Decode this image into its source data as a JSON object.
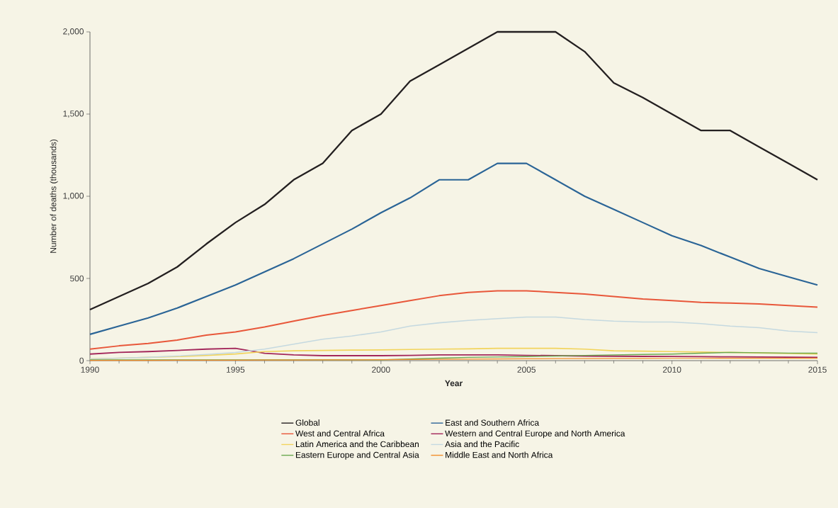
{
  "chart_data": {
    "type": "line",
    "xlabel": "Year",
    "ylabel": "Number of deaths (thousands)",
    "x": [
      1990,
      1991,
      1992,
      1993,
      1994,
      1995,
      1996,
      1997,
      1998,
      1999,
      2000,
      2001,
      2002,
      2003,
      2004,
      2005,
      2006,
      2007,
      2008,
      2009,
      2010,
      2011,
      2012,
      2013,
      2014,
      2015
    ],
    "xlim": [
      1990,
      2015
    ],
    "xticks": [
      1990,
      1995,
      2000,
      2005,
      2010,
      2015
    ],
    "ylim": [
      0,
      2000
    ],
    "yticks": [
      0,
      500,
      {
        "value": 1000,
        "label": "1,000"
      },
      {
        "value": 1500,
        "label": "1,500"
      },
      {
        "value": 2000,
        "label": "2,000"
      }
    ],
    "legend": "bottom",
    "marker": "none",
    "line_style": "solid",
    "series": [
      {
        "name": "Global",
        "color": "#231f20",
        "values": [
          310,
          390,
          470,
          570,
          710,
          840,
          950,
          1100,
          1200,
          1400,
          1500,
          1700,
          1800,
          1900,
          2000,
          2000,
          2000,
          1880,
          1690,
          1600,
          1500,
          1400,
          1400,
          1300,
          1200,
          1100
        ]
      },
      {
        "name": "East and Southern Africa",
        "color": "#2a6496",
        "values": [
          160,
          210,
          260,
          320,
          390,
          460,
          540,
          620,
          710,
          800,
          900,
          990,
          1100,
          1100,
          1200,
          1200,
          1100,
          1000,
          920,
          840,
          760,
          700,
          630,
          560,
          510,
          460
        ]
      },
      {
        "name": "West and Central Africa",
        "color": "#e8573a",
        "values": [
          70,
          90,
          105,
          125,
          155,
          175,
          205,
          240,
          275,
          305,
          335,
          365,
          395,
          415,
          425,
          425,
          415,
          405,
          390,
          375,
          365,
          355,
          350,
          345,
          335,
          325
        ]
      },
      {
        "name": "Western and Central Europe and North America",
        "color": "#a3275a",
        "values": [
          40,
          50,
          55,
          62,
          70,
          75,
          45,
          35,
          30,
          30,
          30,
          32,
          35,
          35,
          35,
          32,
          30,
          28,
          27,
          26,
          25,
          24,
          23,
          22,
          21,
          20
        ]
      },
      {
        "name": "Latin America and the Caribbean",
        "color": "#f2d45c",
        "values": [
          10,
          15,
          20,
          25,
          32,
          40,
          55,
          60,
          62,
          64,
          65,
          68,
          70,
          72,
          75,
          75,
          75,
          70,
          60,
          58,
          55,
          52,
          50,
          47,
          44,
          40
        ]
      },
      {
        "name": "Asia and the Pacific",
        "color": "#c5d9e0",
        "values": [
          10,
          15,
          20,
          28,
          38,
          50,
          70,
          100,
          130,
          150,
          175,
          210,
          230,
          245,
          255,
          265,
          265,
          250,
          240,
          235,
          235,
          225,
          210,
          200,
          180,
          170
        ]
      },
      {
        "name": "Eastern Europe and Central Asia",
        "color": "#6aa84f",
        "values": [
          5,
          5,
          5,
          5,
          5,
          5,
          5,
          5,
          5,
          5,
          5,
          10,
          15,
          20,
          22,
          25,
          28,
          32,
          35,
          38,
          40,
          45,
          50,
          48,
          46,
          45
        ]
      },
      {
        "name": "Middle East and North Africa",
        "color": "#f28e2b",
        "values": [
          2,
          2,
          2,
          3,
          3,
          3,
          4,
          4,
          5,
          5,
          6,
          7,
          8,
          9,
          10,
          11,
          12,
          12,
          13,
          13,
          14,
          14,
          15,
          15,
          15,
          15
        ]
      }
    ]
  }
}
